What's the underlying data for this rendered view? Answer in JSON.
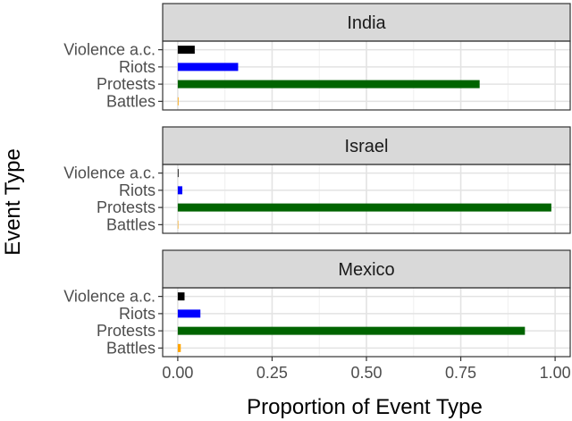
{
  "chart_data": {
    "type": "bar",
    "orientation": "horizontal",
    "xlabel": "Proportion of Event Type",
    "ylabel": "Event Type",
    "xlim": [
      -0.04,
      1.04
    ],
    "xticks": [
      0.0,
      0.25,
      0.5,
      0.75,
      1.0
    ],
    "xtick_labels": [
      "0.00",
      "0.25",
      "0.50",
      "0.75",
      "1.00"
    ],
    "categories": [
      "Violence a.c.",
      "Riots",
      "Protests",
      "Battles"
    ],
    "category_colors": [
      "#000000",
      "#0000ff",
      "#006400",
      "#ffa500"
    ],
    "grid": true,
    "legend": "none",
    "facets": [
      {
        "name": "India",
        "values": [
          0.045,
          0.16,
          0.8,
          0.002
        ]
      },
      {
        "name": "Israel",
        "values": [
          0.002,
          0.012,
          0.99,
          0.0
        ]
      },
      {
        "name": "Mexico",
        "values": [
          0.018,
          0.06,
          0.92,
          0.008
        ]
      }
    ]
  }
}
